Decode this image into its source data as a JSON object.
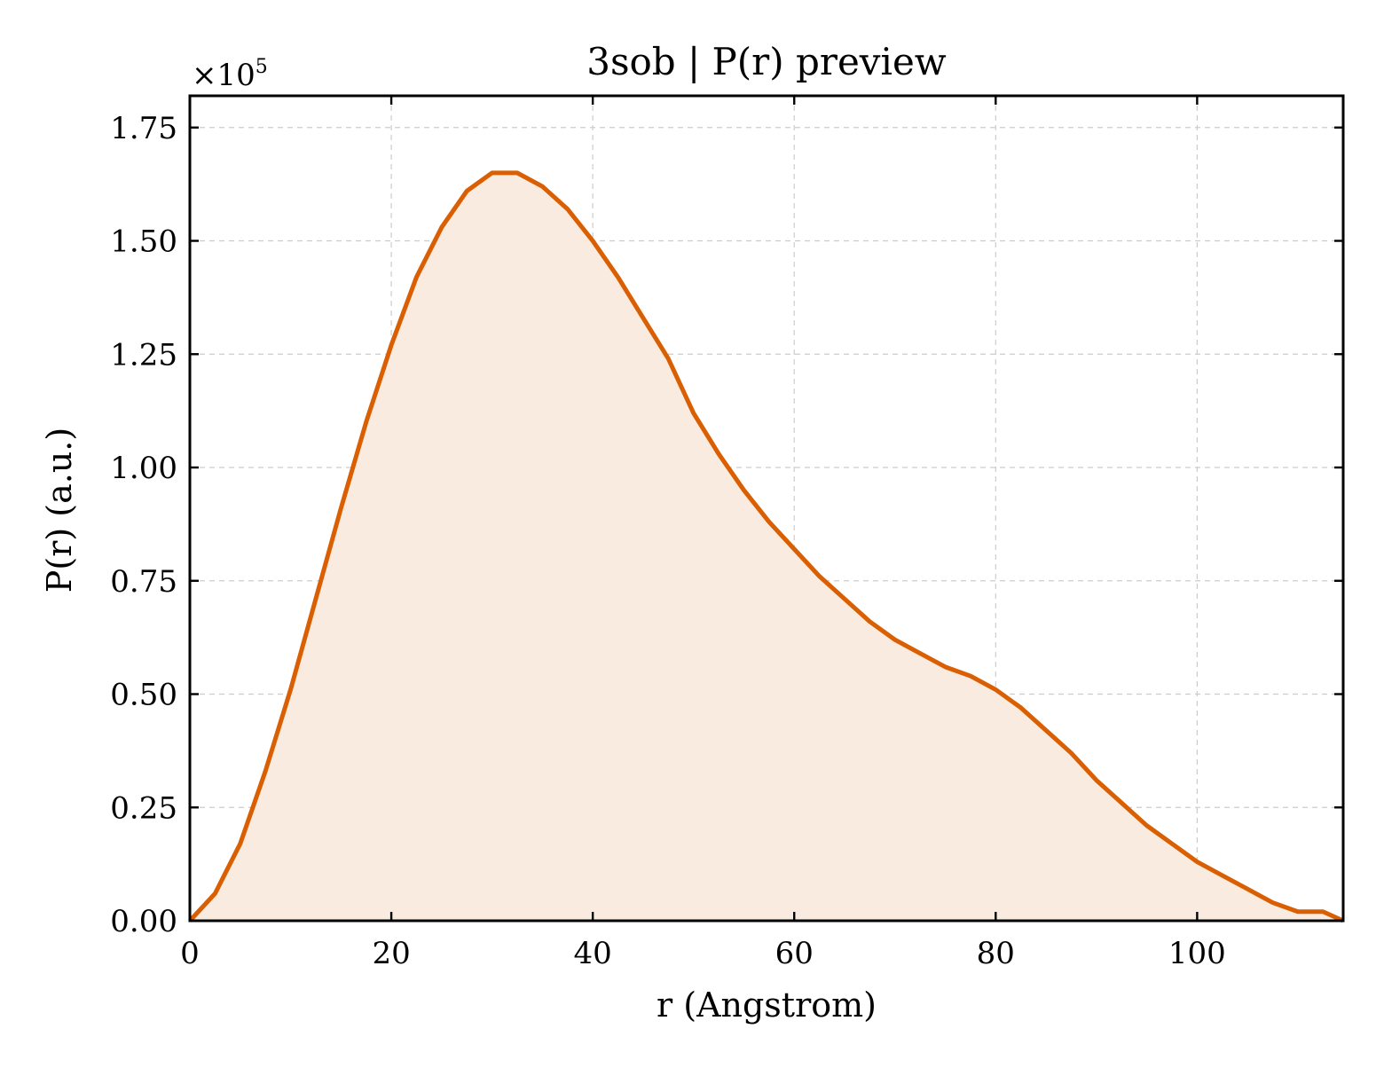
{
  "chart_data": {
    "type": "area",
    "title": "3sob | P(r) preview",
    "xlabel": "r (Angstrom)",
    "ylabel": "P(r) (a.u.)",
    "y_multiplier": {
      "base": "×10",
      "exponent": "5"
    },
    "xlim": [
      0,
      114.5
    ],
    "ylim": [
      0,
      1.82
    ],
    "x_ticks": [
      0,
      20,
      40,
      60,
      80,
      100
    ],
    "x_tick_labels": [
      "0",
      "20",
      "40",
      "60",
      "80",
      "100"
    ],
    "y_ticks": [
      0,
      0.25,
      0.5,
      0.75,
      1.0,
      1.25,
      1.5,
      1.75
    ],
    "y_tick_labels": [
      "0.00",
      "0.25",
      "0.50",
      "0.75",
      "1.00",
      "1.25",
      "1.50",
      "1.75"
    ],
    "grid": true,
    "ticks_direction": "in",
    "line_color": "#d95f02",
    "fill_color": "#f9ebe0",
    "series": [
      {
        "x": [
          0,
          2.5,
          5,
          7.5,
          10,
          12.5,
          15,
          17.5,
          20,
          22.5,
          25,
          27.5,
          30,
          32.5,
          35,
          37.5,
          40,
          42.5,
          45,
          47.5,
          50,
          52.5,
          55,
          57.5,
          60,
          62.5,
          65,
          67.5,
          70,
          72.5,
          75,
          77.5,
          80,
          82.5,
          85,
          87.5,
          90,
          92.5,
          95,
          97.5,
          100,
          102.5,
          105,
          107.5,
          110,
          112.5,
          114.5
        ],
        "y": [
          0.0,
          0.06,
          0.17,
          0.33,
          0.51,
          0.71,
          0.91,
          1.1,
          1.27,
          1.42,
          1.53,
          1.61,
          1.65,
          1.65,
          1.62,
          1.57,
          1.5,
          1.42,
          1.33,
          1.24,
          1.12,
          1.03,
          0.95,
          0.88,
          0.82,
          0.76,
          0.71,
          0.66,
          0.62,
          0.59,
          0.56,
          0.54,
          0.51,
          0.47,
          0.42,
          0.37,
          0.31,
          0.26,
          0.21,
          0.17,
          0.13,
          0.1,
          0.07,
          0.04,
          0.02,
          0.02,
          0.0
        ]
      }
    ]
  }
}
